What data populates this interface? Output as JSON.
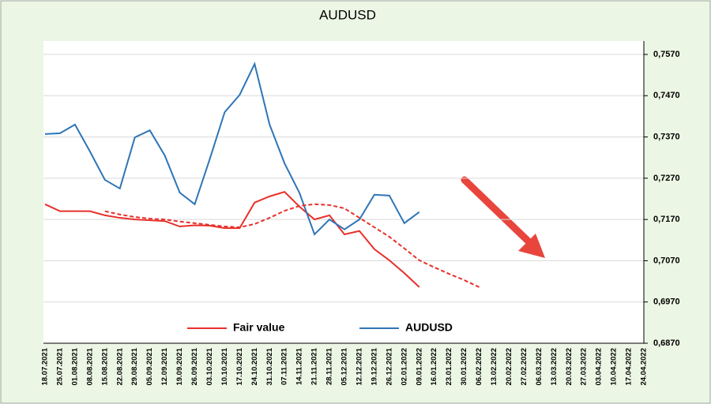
{
  "chart_data": {
    "type": "line",
    "title": "AUDUSD",
    "categories": [
      "18.07.2021",
      "25.07.2021",
      "01.08.2021",
      "08.08.2021",
      "15.08.2021",
      "22.08.2021",
      "29.08.2021",
      "05.09.2021",
      "12.09.2021",
      "19.09.2021",
      "26.09.2021",
      "03.10.2021",
      "10.10.2021",
      "17.10.2021",
      "24.10.2021",
      "31.10.2021",
      "07.11.2021",
      "14.11.2021",
      "21.11.2021",
      "28.11.2021",
      "05.12.2021",
      "12.12.2021",
      "19.12.2021",
      "26.12.2021",
      "02.01.2022",
      "09.01.2022",
      "16.01.2022",
      "23.01.2022",
      "30.01.2022",
      "06.02.2022",
      "13.02.2022",
      "20.02.2022",
      "27.02.2022",
      "06.03.2022",
      "13.03.2022",
      "20.03.2022",
      "27.03.2022",
      "03.04.2022",
      "10.04.2022",
      "17.04.2022",
      "24.04.2022"
    ],
    "series": [
      {
        "name": "Fair value",
        "color": "#e8302a",
        "dash": false,
        "values": [
          0.7207,
          0.719,
          0.719,
          0.719,
          0.718,
          0.7174,
          0.717,
          0.7168,
          0.7166,
          0.7153,
          0.7156,
          0.7155,
          0.7149,
          0.7149,
          0.7211,
          0.7226,
          0.7237,
          0.7201,
          0.717,
          0.718,
          0.7134,
          0.7142,
          0.7098,
          0.7071,
          0.704,
          0.7006,
          null,
          null,
          null,
          null,
          null,
          null,
          null,
          null,
          null,
          null,
          null,
          null,
          null,
          null,
          null
        ]
      },
      {
        "name": "AUDUSD",
        "color": "#2e75b6",
        "dash": false,
        "values": [
          0.7377,
          0.7379,
          0.74,
          0.7335,
          0.7266,
          0.7245,
          0.7369,
          0.7386,
          0.7325,
          0.7235,
          0.7207,
          0.7316,
          0.743,
          0.7472,
          0.7547,
          0.74,
          0.7306,
          0.7234,
          0.7134,
          0.717,
          0.7146,
          0.717,
          0.723,
          0.7228,
          0.7161,
          0.7188,
          null,
          null,
          null,
          null,
          null,
          null,
          null,
          null,
          null,
          null,
          null,
          null,
          null,
          null,
          null
        ]
      },
      {
        "color": "#e8302a",
        "dash": true,
        "values": [
          null,
          null,
          null,
          null,
          0.719,
          0.7182,
          0.7176,
          0.7172,
          0.717,
          0.7165,
          0.7161,
          0.7157,
          0.7153,
          0.7151,
          0.7159,
          0.7174,
          0.7191,
          0.7203,
          0.7207,
          0.7205,
          0.7197,
          0.7174,
          0.7151,
          0.7128,
          0.71,
          0.7071,
          0.7054,
          0.7038,
          0.7023,
          0.7006,
          null,
          null,
          null,
          null,
          null,
          null,
          null,
          null,
          null,
          null,
          null
        ]
      }
    ],
    "ylim": [
      0.687,
      0.757
    ],
    "yticks": [
      {
        "value": 0.687,
        "label": "0,6870"
      },
      {
        "value": 0.697,
        "label": "0,6970"
      },
      {
        "value": 0.707,
        "label": "0,7070"
      },
      {
        "value": 0.717,
        "label": "0,7170"
      },
      {
        "value": 0.727,
        "label": "0,7270"
      },
      {
        "value": 0.737,
        "label": "0,7370"
      },
      {
        "value": 0.747,
        "label": "0,7470"
      },
      {
        "value": 0.757,
        "label": "0,7570"
      }
    ],
    "grid": true
  }
}
